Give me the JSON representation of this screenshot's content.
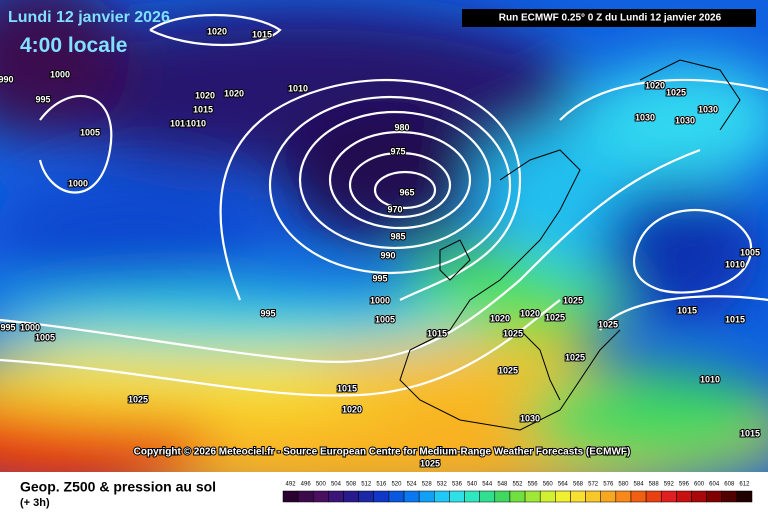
{
  "header": {
    "date": "Lundi 12 janvier 2026",
    "time": "4:00 locale",
    "run_info": "Run ECMWF 0.25° 0 Z du Lundi 12 janvier 2026"
  },
  "copyright": "Copyright © 2026 Meteociel.fr - Source European Centre for Medium-Range Weather Forecasts (ECMWF)",
  "footer": {
    "title": "Geop. Z500 & pression au sol",
    "subtitle": "(+ 3h)"
  },
  "isobars": [
    "1000",
    "995",
    "1005",
    "1000",
    "990",
    "1020",
    "1015",
    "1020",
    "1020",
    "1015",
    "1010",
    "1010",
    "1010",
    "980",
    "975",
    "965",
    "970",
    "985",
    "990",
    "995",
    "1000",
    "1005",
    "995",
    "995",
    "1000",
    "1005",
    "1015",
    "1020",
    "1020",
    "1025",
    "1025",
    "1025",
    "1025",
    "1025",
    "1025",
    "1015",
    "1015",
    "1010",
    "1005",
    "1010",
    "1020",
    "1025",
    "1030",
    "1030",
    "1030",
    "1025",
    "1015",
    "1020",
    "1030",
    "1025",
    "1015"
  ],
  "legend": {
    "labels": [
      492,
      496,
      500,
      504,
      508,
      512,
      516,
      520,
      524,
      528,
      532,
      536,
      540,
      544,
      548,
      552,
      556,
      560,
      564,
      568,
      572,
      576,
      580,
      584,
      588,
      592,
      596,
      600,
      604,
      608,
      612
    ],
    "colors": [
      "#2a0030",
      "#3c0a4a",
      "#4a1060",
      "#3a1478",
      "#281a8c",
      "#1a28a8",
      "#1038c8",
      "#0858e0",
      "#0a78f0",
      "#10a0f8",
      "#20c8f8",
      "#30e0e8",
      "#30e8c0",
      "#30e090",
      "#40d860",
      "#70e040",
      "#a0e838",
      "#d0f030",
      "#f0f030",
      "#f8e030",
      "#f8c828",
      "#f8a820",
      "#f88818",
      "#f06010",
      "#e84010",
      "#e02020",
      "#c81010",
      "#a80808",
      "#800000",
      "#500000",
      "#200000"
    ]
  }
}
